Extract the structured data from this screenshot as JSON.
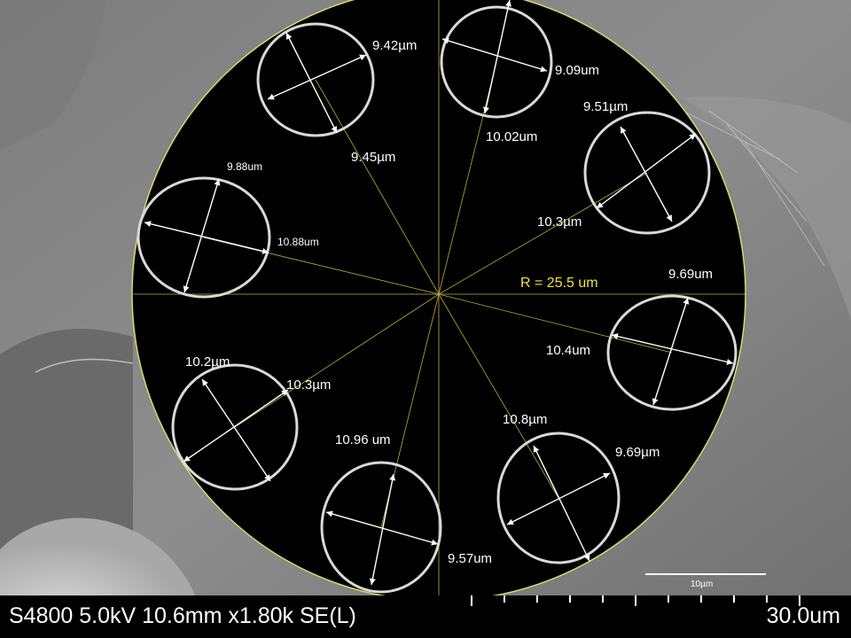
{
  "micrograph": {
    "radius_label": "R = 25.5 um",
    "measurements": [
      "9.42µm",
      "9.45µm",
      "9.09um",
      "10.02um",
      "9.51µm",
      "10.3µm",
      "9.88um",
      "10.88um",
      "9.69um",
      "10.4um",
      "10.2µm",
      "10.3µm",
      "10.96 um",
      "9.57um",
      "10.8µm",
      "9.69µm"
    ],
    "scale_bar_label": "10µm"
  },
  "info_bar": {
    "instrument": "S4800 5.0kV 10.6mm x1.80k SE(L)",
    "field_of_view": "30.0um"
  },
  "colors": {
    "core_background": "#000000",
    "cladding_outline": "#d8d870",
    "spoke_lines": "#b8b040",
    "radius_label": "#f2e33c",
    "label_text": "#ffffff"
  }
}
